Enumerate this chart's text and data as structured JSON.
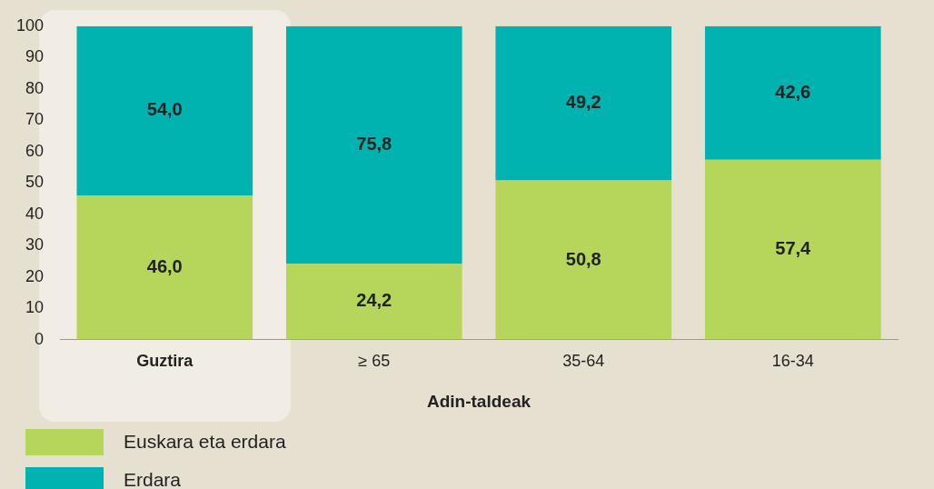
{
  "chart_data": {
    "type": "bar",
    "stacked": true,
    "xlabel": "Adin-taldeak",
    "categories": [
      "Guztira",
      "≥ 65",
      "35-64",
      "16-34"
    ],
    "series": [
      {
        "name": "Euskara eta erdara",
        "color": "#b5d55b",
        "values": [
          46.0,
          24.2,
          50.8,
          57.4
        ],
        "value_labels": [
          "46,0",
          "24,2",
          "50,8",
          "57,4"
        ]
      },
      {
        "name": "Erdara",
        "color": "#00b2b0",
        "values": [
          54.0,
          75.8,
          49.2,
          42.6
        ],
        "value_labels": [
          "54,0",
          "75,8",
          "49,2",
          "42,6"
        ]
      }
    ],
    "ylim": [
      0,
      100
    ],
    "yticks": [
      0,
      10,
      20,
      30,
      40,
      50,
      60,
      70,
      80,
      90,
      100
    ],
    "grid": false,
    "legend": "bottom left"
  }
}
